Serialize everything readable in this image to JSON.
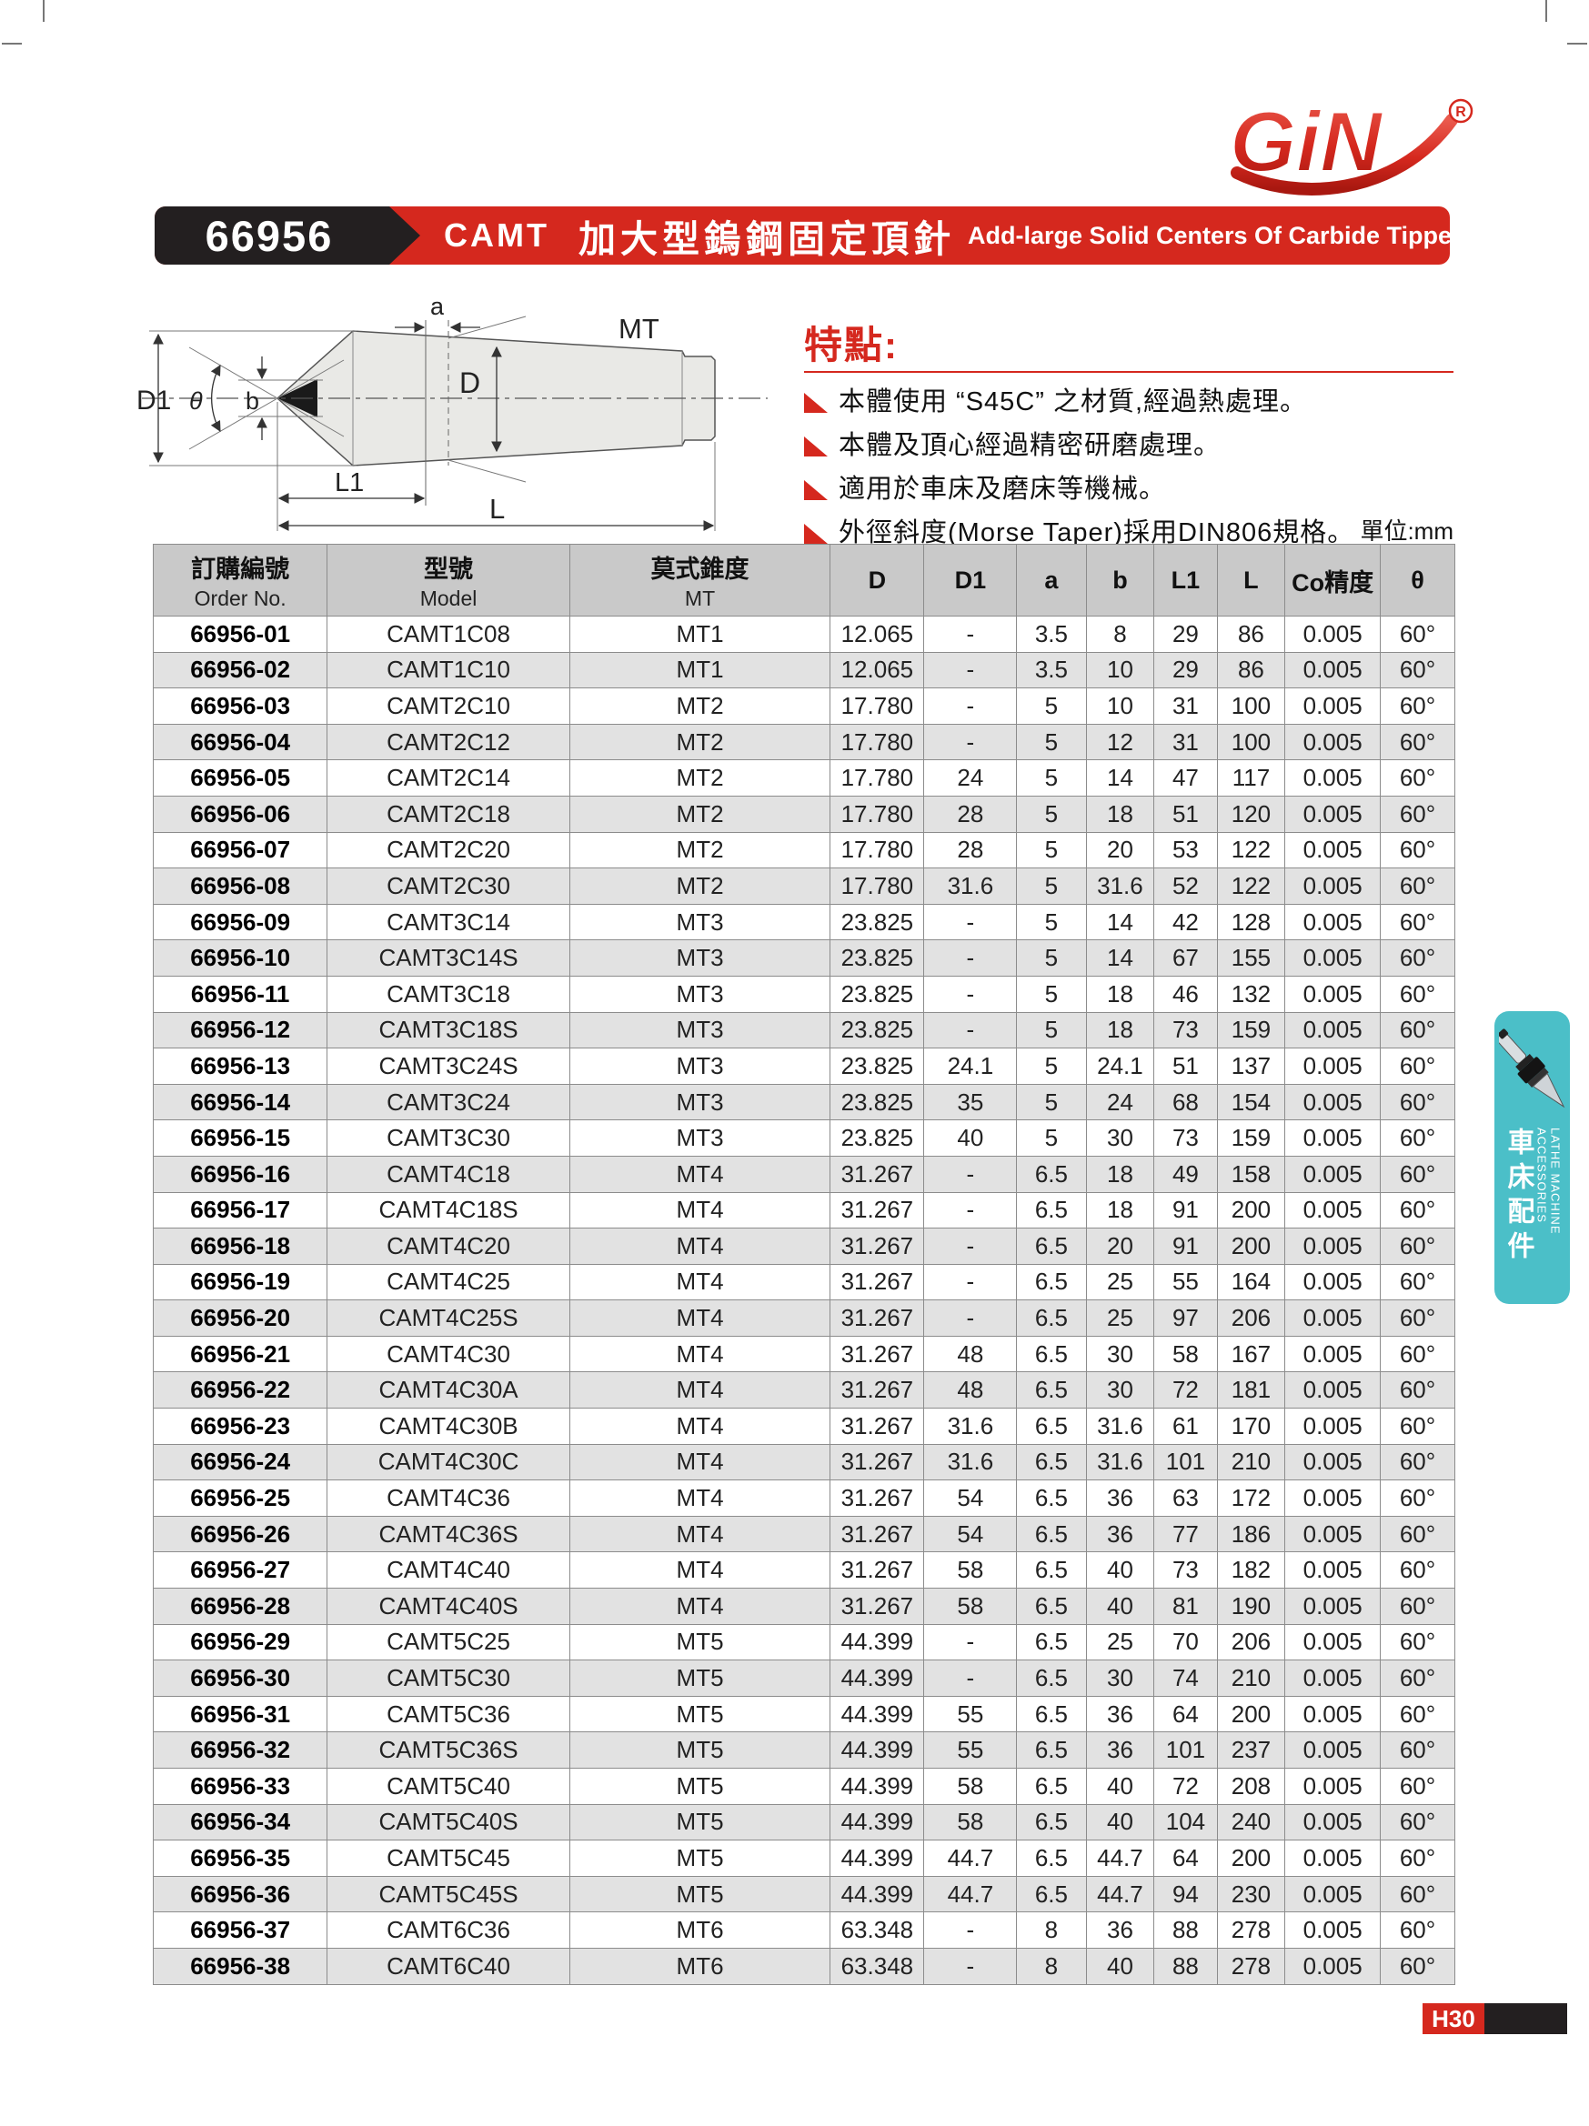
{
  "colors": {
    "red": "#d5281e",
    "teal": "#4bbfc8",
    "black": "#231f20"
  },
  "logo": {
    "text": "GiN",
    "registered": "R"
  },
  "header": {
    "code": "66956",
    "series": "CAMT",
    "title_zh": "加大型鎢鋼固定頂針",
    "title_en": "Add-large Solid Centers Of Carbide Tipped"
  },
  "diagram": {
    "labels": {
      "a": "a",
      "mt": "MT",
      "d": "D",
      "d1": "D1",
      "theta": "θ",
      "b": "b",
      "l1": "L1",
      "l": "L"
    }
  },
  "features": {
    "heading": "特點:",
    "items": [
      "本體使用 “S45C” 之材質,經過熱處理。",
      "本體及頂心經過精密研磨處理。",
      "適用於車床及磨床等機械。",
      "外徑斜度(Morse Taper)採用DIN806規格。"
    ]
  },
  "unit_label": "單位:mm",
  "side_tab": {
    "zh": "車床配件",
    "en": "LATHE MACHINE ACCESSORIES"
  },
  "page_number": "H30",
  "table": {
    "columns": [
      {
        "top": "訂購編號",
        "bottom": "Order No."
      },
      {
        "top": "型號",
        "bottom": "Model"
      },
      {
        "top": "莫式錐度",
        "bottom": "MT"
      },
      {
        "top": "D"
      },
      {
        "top": "D1"
      },
      {
        "top": "a"
      },
      {
        "top": "b"
      },
      {
        "top": "L1"
      },
      {
        "top": "L"
      },
      {
        "top": "Co精度"
      },
      {
        "top": "θ"
      }
    ],
    "rows": [
      [
        "66956-01",
        "CAMT1C08",
        "MT1",
        "12.065",
        "-",
        "3.5",
        "8",
        "29",
        "86",
        "0.005",
        "60°"
      ],
      [
        "66956-02",
        "CAMT1C10",
        "MT1",
        "12.065",
        "-",
        "3.5",
        "10",
        "29",
        "86",
        "0.005",
        "60°"
      ],
      [
        "66956-03",
        "CAMT2C10",
        "MT2",
        "17.780",
        "-",
        "5",
        "10",
        "31",
        "100",
        "0.005",
        "60°"
      ],
      [
        "66956-04",
        "CAMT2C12",
        "MT2",
        "17.780",
        "-",
        "5",
        "12",
        "31",
        "100",
        "0.005",
        "60°"
      ],
      [
        "66956-05",
        "CAMT2C14",
        "MT2",
        "17.780",
        "24",
        "5",
        "14",
        "47",
        "117",
        "0.005",
        "60°"
      ],
      [
        "66956-06",
        "CAMT2C18",
        "MT2",
        "17.780",
        "28",
        "5",
        "18",
        "51",
        "120",
        "0.005",
        "60°"
      ],
      [
        "66956-07",
        "CAMT2C20",
        "MT2",
        "17.780",
        "28",
        "5",
        "20",
        "53",
        "122",
        "0.005",
        "60°"
      ],
      [
        "66956-08",
        "CAMT2C30",
        "MT2",
        "17.780",
        "31.6",
        "5",
        "31.6",
        "52",
        "122",
        "0.005",
        "60°"
      ],
      [
        "66956-09",
        "CAMT3C14",
        "MT3",
        "23.825",
        "-",
        "5",
        "14",
        "42",
        "128",
        "0.005",
        "60°"
      ],
      [
        "66956-10",
        "CAMT3C14S",
        "MT3",
        "23.825",
        "-",
        "5",
        "14",
        "67",
        "155",
        "0.005",
        "60°"
      ],
      [
        "66956-11",
        "CAMT3C18",
        "MT3",
        "23.825",
        "-",
        "5",
        "18",
        "46",
        "132",
        "0.005",
        "60°"
      ],
      [
        "66956-12",
        "CAMT3C18S",
        "MT3",
        "23.825",
        "-",
        "5",
        "18",
        "73",
        "159",
        "0.005",
        "60°"
      ],
      [
        "66956-13",
        "CAMT3C24S",
        "MT3",
        "23.825",
        "24.1",
        "5",
        "24.1",
        "51",
        "137",
        "0.005",
        "60°"
      ],
      [
        "66956-14",
        "CAMT3C24",
        "MT3",
        "23.825",
        "35",
        "5",
        "24",
        "68",
        "154",
        "0.005",
        "60°"
      ],
      [
        "66956-15",
        "CAMT3C30",
        "MT3",
        "23.825",
        "40",
        "5",
        "30",
        "73",
        "159",
        "0.005",
        "60°"
      ],
      [
        "66956-16",
        "CAMT4C18",
        "MT4",
        "31.267",
        "-",
        "6.5",
        "18",
        "49",
        "158",
        "0.005",
        "60°"
      ],
      [
        "66956-17",
        "CAMT4C18S",
        "MT4",
        "31.267",
        "-",
        "6.5",
        "18",
        "91",
        "200",
        "0.005",
        "60°"
      ],
      [
        "66956-18",
        "CAMT4C20",
        "MT4",
        "31.267",
        "-",
        "6.5",
        "20",
        "91",
        "200",
        "0.005",
        "60°"
      ],
      [
        "66956-19",
        "CAMT4C25",
        "MT4",
        "31.267",
        "-",
        "6.5",
        "25",
        "55",
        "164",
        "0.005",
        "60°"
      ],
      [
        "66956-20",
        "CAMT4C25S",
        "MT4",
        "31.267",
        "-",
        "6.5",
        "25",
        "97",
        "206",
        "0.005",
        "60°"
      ],
      [
        "66956-21",
        "CAMT4C30",
        "MT4",
        "31.267",
        "48",
        "6.5",
        "30",
        "58",
        "167",
        "0.005",
        "60°"
      ],
      [
        "66956-22",
        "CAMT4C30A",
        "MT4",
        "31.267",
        "48",
        "6.5",
        "30",
        "72",
        "181",
        "0.005",
        "60°"
      ],
      [
        "66956-23",
        "CAMT4C30B",
        "MT4",
        "31.267",
        "31.6",
        "6.5",
        "31.6",
        "61",
        "170",
        "0.005",
        "60°"
      ],
      [
        "66956-24",
        "CAMT4C30C",
        "MT4",
        "31.267",
        "31.6",
        "6.5",
        "31.6",
        "101",
        "210",
        "0.005",
        "60°"
      ],
      [
        "66956-25",
        "CAMT4C36",
        "MT4",
        "31.267",
        "54",
        "6.5",
        "36",
        "63",
        "172",
        "0.005",
        "60°"
      ],
      [
        "66956-26",
        "CAMT4C36S",
        "MT4",
        "31.267",
        "54",
        "6.5",
        "36",
        "77",
        "186",
        "0.005",
        "60°"
      ],
      [
        "66956-27",
        "CAMT4C40",
        "MT4",
        "31.267",
        "58",
        "6.5",
        "40",
        "73",
        "182",
        "0.005",
        "60°"
      ],
      [
        "66956-28",
        "CAMT4C40S",
        "MT4",
        "31.267",
        "58",
        "6.5",
        "40",
        "81",
        "190",
        "0.005",
        "60°"
      ],
      [
        "66956-29",
        "CAMT5C25",
        "MT5",
        "44.399",
        "-",
        "6.5",
        "25",
        "70",
        "206",
        "0.005",
        "60°"
      ],
      [
        "66956-30",
        "CAMT5C30",
        "MT5",
        "44.399",
        "-",
        "6.5",
        "30",
        "74",
        "210",
        "0.005",
        "60°"
      ],
      [
        "66956-31",
        "CAMT5C36",
        "MT5",
        "44.399",
        "55",
        "6.5",
        "36",
        "64",
        "200",
        "0.005",
        "60°"
      ],
      [
        "66956-32",
        "CAMT5C36S",
        "MT5",
        "44.399",
        "55",
        "6.5",
        "36",
        "101",
        "237",
        "0.005",
        "60°"
      ],
      [
        "66956-33",
        "CAMT5C40",
        "MT5",
        "44.399",
        "58",
        "6.5",
        "40",
        "72",
        "208",
        "0.005",
        "60°"
      ],
      [
        "66956-34",
        "CAMT5C40S",
        "MT5",
        "44.399",
        "58",
        "6.5",
        "40",
        "104",
        "240",
        "0.005",
        "60°"
      ],
      [
        "66956-35",
        "CAMT5C45",
        "MT5",
        "44.399",
        "44.7",
        "6.5",
        "44.7",
        "64",
        "200",
        "0.005",
        "60°"
      ],
      [
        "66956-36",
        "CAMT5C45S",
        "MT5",
        "44.399",
        "44.7",
        "6.5",
        "44.7",
        "94",
        "230",
        "0.005",
        "60°"
      ],
      [
        "66956-37",
        "CAMT6C36",
        "MT6",
        "63.348",
        "-",
        "8",
        "36",
        "88",
        "278",
        "0.005",
        "60°"
      ],
      [
        "66956-38",
        "CAMT6C40",
        "MT6",
        "63.348",
        "-",
        "8",
        "40",
        "88",
        "278",
        "0.005",
        "60°"
      ]
    ]
  }
}
